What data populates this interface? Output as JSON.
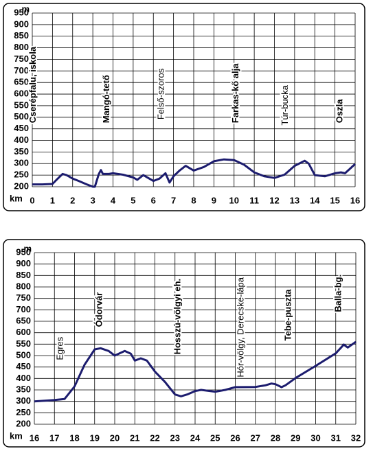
{
  "chart_data": [
    {
      "type": "line",
      "ylabel": "m",
      "xlabel": "km",
      "color": "#1c1c6e",
      "grid": true,
      "xlim": [
        0,
        16
      ],
      "ylim": [
        200,
        950
      ],
      "xticks": [
        0,
        1,
        2,
        3,
        4,
        5,
        6,
        7,
        8,
        9,
        10,
        11,
        12,
        13,
        14,
        15,
        16
      ],
      "yticks": [
        200,
        250,
        300,
        350,
        400,
        450,
        500,
        550,
        600,
        650,
        700,
        750,
        800,
        850,
        900,
        950
      ],
      "x": [
        0,
        0.5,
        1,
        1.2,
        1.5,
        1.7,
        2,
        2.3,
        2.7,
        3,
        3.1,
        3.3,
        3.4,
        3.5,
        3.8,
        4,
        4.5,
        5,
        5.2,
        5.5,
        5.8,
        6,
        6.3,
        6.6,
        6.8,
        7,
        7.3,
        7.6,
        8,
        8.5,
        9,
        9.5,
        10,
        10.5,
        11,
        11.5,
        12,
        12.5,
        13,
        13.5,
        13.7,
        14,
        14.5,
        15,
        15.3,
        15.5,
        16
      ],
      "values": [
        210,
        210,
        212,
        230,
        255,
        250,
        235,
        225,
        210,
        200,
        200,
        255,
        272,
        255,
        255,
        258,
        252,
        240,
        230,
        250,
        235,
        225,
        235,
        258,
        218,
        245,
        270,
        290,
        270,
        285,
        310,
        318,
        315,
        295,
        262,
        245,
        238,
        252,
        290,
        312,
        300,
        250,
        245,
        258,
        262,
        258,
        298
      ],
      "annotations": [
        {
          "text": "Cserépfalu, iskola",
          "x": 0.05,
          "y": 475,
          "bold": true
        },
        {
          "text": "Mangó-tető",
          "x": 3.7,
          "y": 475,
          "bold": true
        },
        {
          "text": "Felső-szoros",
          "x": 6.4,
          "y": 490,
          "bold": false
        },
        {
          "text": "Farkas-kő alja",
          "x": 10.1,
          "y": 475,
          "bold": true
        },
        {
          "text": "Túr-bucka",
          "x": 12.55,
          "y": 465,
          "bold": false
        },
        {
          "text": "Oszla",
          "x": 15.25,
          "y": 475,
          "bold": true
        }
      ]
    },
    {
      "type": "line",
      "ylabel": "m",
      "xlabel": "km",
      "color": "#1c1c6e",
      "grid": true,
      "xlim": [
        16,
        32
      ],
      "ylim": [
        200,
        950
      ],
      "xticks": [
        16,
        17,
        18,
        19,
        20,
        21,
        22,
        23,
        24,
        25,
        26,
        27,
        28,
        29,
        30,
        31,
        32
      ],
      "yticks": [
        200,
        250,
        300,
        350,
        400,
        450,
        500,
        550,
        600,
        650,
        700,
        750,
        800,
        850,
        900,
        950
      ],
      "x": [
        16,
        17,
        17.5,
        18,
        18.5,
        19,
        19.3,
        19.7,
        20,
        20.5,
        20.8,
        21,
        21.3,
        21.6,
        22,
        22.5,
        23,
        23.3,
        23.6,
        24,
        24.3,
        25,
        25.5,
        26,
        27,
        27.5,
        27.8,
        28,
        28.3,
        28.5,
        29,
        30,
        31,
        31.3,
        31.4,
        31.6,
        32
      ],
      "values": [
        300,
        306,
        310,
        365,
        460,
        527,
        532,
        520,
        500,
        520,
        508,
        478,
        488,
        478,
        430,
        385,
        330,
        322,
        330,
        345,
        350,
        342,
        350,
        362,
        363,
        370,
        378,
        375,
        362,
        370,
        402,
        455,
        510,
        538,
        548,
        535,
        560
      ],
      "annotations": [
        {
          "text": "Egres",
          "x": 17.3,
          "y": 480,
          "bold": false
        },
        {
          "text": "Ódorvár",
          "x": 19.25,
          "y": 625,
          "bold": true
        },
        {
          "text": "Hosszú-völgyi eh.",
          "x": 23.15,
          "y": 505,
          "bold": true
        },
        {
          "text": "Hór-völgy, Derecske-lápa",
          "x": 26.3,
          "y": 405,
          "bold": false
        },
        {
          "text": "Tebe-puszta",
          "x": 28.65,
          "y": 565,
          "bold": true
        },
        {
          "text": "Balla-bg.",
          "x": 31.15,
          "y": 690,
          "bold": true
        }
      ]
    }
  ]
}
